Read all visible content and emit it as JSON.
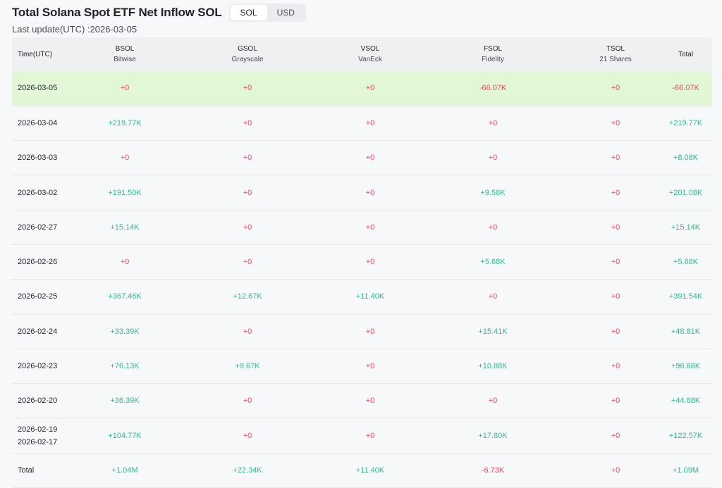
{
  "title": "Total Solana Spot ETF Net Inflow SOL",
  "toggle": {
    "options": [
      "SOL",
      "USD"
    ],
    "selected": "SOL"
  },
  "last_update": "Last update(UTC) :2026-03-05",
  "columns": [
    {
      "ticker": "Time(UTC)",
      "issuer": ""
    },
    {
      "ticker": "BSOL",
      "issuer": "Bitwise"
    },
    {
      "ticker": "GSOL",
      "issuer": "Grayscale"
    },
    {
      "ticker": "VSOL",
      "issuer": "VanEck"
    },
    {
      "ticker": "FSOL",
      "issuer": "Fidelity"
    },
    {
      "ticker": "TSOL",
      "issuer": "21 Shares"
    },
    {
      "ticker": "Total",
      "issuer": ""
    }
  ],
  "rows": [
    {
      "date": "2026-03-05",
      "date2": "",
      "cells": [
        "+0",
        "+0",
        "+0",
        "-66.07K",
        "+0",
        "-66.07K"
      ]
    },
    {
      "date": "2026-03-04",
      "date2": "",
      "cells": [
        "+219.77K",
        "+0",
        "+0",
        "+0",
        "+0",
        "+219.77K"
      ]
    },
    {
      "date": "2026-03-03",
      "date2": "",
      "cells": [
        "+0",
        "+0",
        "+0",
        "+0",
        "+0",
        "+8.08K"
      ]
    },
    {
      "date": "2026-03-02",
      "date2": "",
      "cells": [
        "+191.50K",
        "+0",
        "+0",
        "+9.58K",
        "+0",
        "+201.08K"
      ]
    },
    {
      "date": "2026-02-27",
      "date2": "",
      "cells": [
        "+15.14K",
        "+0",
        "+0",
        "+0",
        "+0",
        "+15.14K"
      ]
    },
    {
      "date": "2026-02-26",
      "date2": "",
      "cells": [
        "+0",
        "+0",
        "+0",
        "+5.68K",
        "+0",
        "+5.68K"
      ]
    },
    {
      "date": "2026-02-25",
      "date2": "",
      "cells": [
        "+367.46K",
        "+12.67K",
        "+11.40K",
        "+0",
        "+0",
        "+391.54K"
      ]
    },
    {
      "date": "2026-02-24",
      "date2": "",
      "cells": [
        "+33.39K",
        "+0",
        "+0",
        "+15.41K",
        "+0",
        "+48.81K"
      ]
    },
    {
      "date": "2026-02-23",
      "date2": "",
      "cells": [
        "+76.13K",
        "+9.67K",
        "+0",
        "+10.88K",
        "+0",
        "+96.68K"
      ]
    },
    {
      "date": "2026-02-20",
      "date2": "",
      "cells": [
        "+36.39K",
        "+0",
        "+0",
        "+0",
        "+0",
        "+44.88K"
      ]
    },
    {
      "date": "2026-02-19",
      "date2": "2026-02-17",
      "cells": [
        "+104.77K",
        "+0",
        "+0",
        "+17.80K",
        "+0",
        "+122.57K"
      ]
    },
    {
      "date": "Total",
      "date2": "",
      "cells": [
        "+1.04M",
        "+22.34K",
        "+11.40K",
        "-6.73K",
        "+0",
        "+1.09M"
      ]
    }
  ],
  "colors": {
    "positive": "#2ebd85",
    "zero_and_negative": "#f6465d",
    "highlight_row": "#e1f7d6",
    "header_bg": "#eef0f2"
  }
}
